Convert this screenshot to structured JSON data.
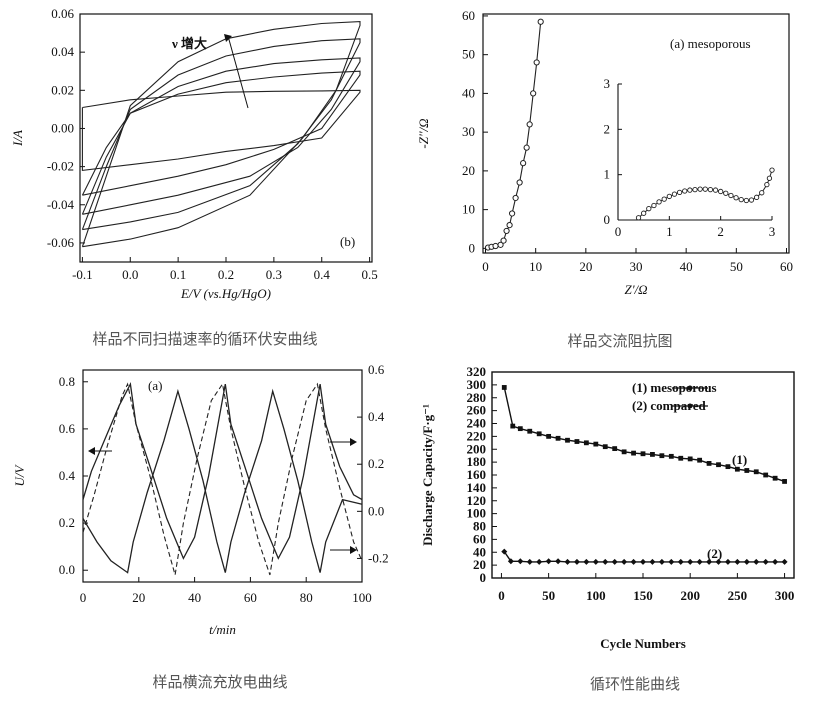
{
  "captions": {
    "p1": "样品不同扫描速率的循环伏安曲线",
    "p2": "样品交流阻抗图",
    "p3": "样品横流充放电曲线",
    "p4": "循环性能曲线"
  },
  "chart_data": [
    {
      "type": "line",
      "panel_label": "(b)",
      "xlabel": "E/V (vs.Hg/HgO)",
      "ylabel": "I/A",
      "xlim": [
        -0.1,
        0.5
      ],
      "ylim": [
        -0.07,
        0.06
      ],
      "x_ticks": [
        "-0.1",
        "0.0",
        "0.1",
        "0.2",
        "0.3",
        "0.4",
        "0.5"
      ],
      "y_ticks": [
        "0.06",
        "0.04",
        "0.02",
        "0.00",
        "-0.02",
        "-0.04",
        "-0.06"
      ],
      "annotation": "ν 增大",
      "series": [
        {
          "upper": [
            [
              -0.1,
              0.011
            ],
            [
              0.0,
              0.015
            ],
            [
              0.1,
              0.017
            ],
            [
              0.2,
              0.019
            ],
            [
              0.3,
              0.0195
            ],
            [
              0.4,
              0.0197
            ],
            [
              0.48,
              0.02
            ]
          ],
          "lower": [
            [
              0.48,
              0.019
            ],
            [
              0.4,
              -0.005
            ],
            [
              0.3,
              -0.009
            ],
            [
              0.2,
              -0.012
            ],
            [
              0.1,
              -0.016
            ],
            [
              0.0,
              -0.019
            ],
            [
              -0.1,
              -0.022
            ]
          ]
        },
        {
          "upper": [
            [
              -0.1,
              -0.035
            ],
            [
              -0.05,
              -0.01
            ],
            [
              0.0,
              0.008
            ],
            [
              0.1,
              0.018
            ],
            [
              0.2,
              0.024
            ],
            [
              0.3,
              0.027
            ],
            [
              0.4,
              0.029
            ],
            [
              0.48,
              0.03
            ]
          ],
          "lower": [
            [
              0.48,
              0.028
            ],
            [
              0.4,
              0.0
            ],
            [
              0.3,
              -0.011
            ],
            [
              0.2,
              -0.019
            ],
            [
              0.1,
              -0.025
            ],
            [
              0.0,
              -0.03
            ],
            [
              -0.1,
              -0.035
            ]
          ]
        },
        {
          "upper": [
            [
              -0.1,
              -0.045
            ],
            [
              -0.05,
              -0.015
            ],
            [
              0.0,
              0.008
            ],
            [
              0.1,
              0.022
            ],
            [
              0.2,
              0.03
            ],
            [
              0.3,
              0.034
            ],
            [
              0.4,
              0.036
            ],
            [
              0.48,
              0.037
            ]
          ],
          "lower": [
            [
              0.48,
              0.035
            ],
            [
              0.42,
              0.01
            ],
            [
              0.35,
              -0.01
            ],
            [
              0.25,
              -0.025
            ],
            [
              0.1,
              -0.035
            ],
            [
              0.0,
              -0.04
            ],
            [
              -0.1,
              -0.045
            ]
          ]
        },
        {
          "upper": [
            [
              -0.1,
              -0.053
            ],
            [
              -0.05,
              -0.02
            ],
            [
              0.0,
              0.01
            ],
            [
              0.1,
              0.028
            ],
            [
              0.2,
              0.038
            ],
            [
              0.3,
              0.043
            ],
            [
              0.4,
              0.046
            ],
            [
              0.48,
              0.047
            ]
          ],
          "lower": [
            [
              0.48,
              0.045
            ],
            [
              0.42,
              0.015
            ],
            [
              0.35,
              -0.008
            ],
            [
              0.25,
              -0.03
            ],
            [
              0.1,
              -0.044
            ],
            [
              0.0,
              -0.049
            ],
            [
              -0.1,
              -0.053
            ]
          ]
        },
        {
          "upper": [
            [
              -0.1,
              -0.062
            ],
            [
              -0.05,
              -0.025
            ],
            [
              0.0,
              0.012
            ],
            [
              0.1,
              0.035
            ],
            [
              0.2,
              0.047
            ],
            [
              0.3,
              0.052
            ],
            [
              0.4,
              0.055
            ],
            [
              0.48,
              0.056
            ]
          ],
          "lower": [
            [
              0.48,
              0.054
            ],
            [
              0.43,
              0.02
            ],
            [
              0.36,
              -0.005
            ],
            [
              0.25,
              -0.035
            ],
            [
              0.1,
              -0.052
            ],
            [
              0.0,
              -0.058
            ],
            [
              -0.1,
              -0.062
            ]
          ]
        }
      ]
    },
    {
      "type": "scatter",
      "panel_label": "(a) mesoporous",
      "xlabel": "Z'/Ω",
      "ylabel": "-Z''/Ω",
      "xlim": [
        0,
        60
      ],
      "ylim": [
        0,
        60
      ],
      "x_ticks": [
        "0",
        "10",
        "20",
        "30",
        "40",
        "50",
        "60"
      ],
      "y_ticks": [
        "0",
        "10",
        "20",
        "30",
        "40",
        "50",
        "60"
      ],
      "main": [
        [
          0.5,
          0.2
        ],
        [
          1.2,
          0.4
        ],
        [
          2,
          0.6
        ],
        [
          3,
          0.9
        ],
        [
          3.6,
          2
        ],
        [
          4.2,
          4.5
        ],
        [
          4.8,
          6
        ],
        [
          5.3,
          9
        ],
        [
          6,
          13
        ],
        [
          6.8,
          17
        ],
        [
          7.5,
          22
        ],
        [
          8.2,
          26
        ],
        [
          8.8,
          32
        ],
        [
          9.5,
          40
        ],
        [
          10.2,
          48
        ],
        [
          11,
          58.5
        ]
      ],
      "inset": {
        "xlim": [
          0,
          3
        ],
        "ylim": [
          0,
          3
        ],
        "x_ticks": [
          "0",
          "1",
          "2",
          "3"
        ],
        "y_ticks": [
          "0",
          "1",
          "2",
          "3"
        ],
        "points": [
          [
            0.4,
            0.05
          ],
          [
            0.5,
            0.15
          ],
          [
            0.6,
            0.25
          ],
          [
            0.7,
            0.32
          ],
          [
            0.8,
            0.4
          ],
          [
            0.9,
            0.46
          ],
          [
            1.0,
            0.52
          ],
          [
            1.1,
            0.57
          ],
          [
            1.2,
            0.61
          ],
          [
            1.3,
            0.64
          ],
          [
            1.4,
            0.66
          ],
          [
            1.5,
            0.67
          ],
          [
            1.6,
            0.68
          ],
          [
            1.7,
            0.68
          ],
          [
            1.8,
            0.67
          ],
          [
            1.9,
            0.66
          ],
          [
            2.0,
            0.63
          ],
          [
            2.1,
            0.59
          ],
          [
            2.2,
            0.54
          ],
          [
            2.3,
            0.49
          ],
          [
            2.4,
            0.45
          ],
          [
            2.5,
            0.43
          ],
          [
            2.6,
            0.44
          ],
          [
            2.7,
            0.5
          ],
          [
            2.8,
            0.6
          ],
          [
            2.9,
            0.78
          ],
          [
            2.95,
            0.92
          ],
          [
            3.0,
            1.1
          ]
        ]
      }
    },
    {
      "type": "line",
      "panel_label": "(a)",
      "xlabel": "t/min",
      "ylabel": "U/V",
      "xlim": [
        0,
        100
      ],
      "ylim": [
        -0.05,
        0.85
      ],
      "ylim_right": [
        -0.3,
        0.6
      ],
      "x_ticks": [
        "0",
        "20",
        "40",
        "60",
        "80",
        "100"
      ],
      "y_ticks": [
        "0.0",
        "0.2",
        "0.4",
        "0.6",
        "0.8"
      ],
      "y_ticks_right": [
        "-0.2",
        "0.0",
        "0.2",
        "0.4",
        "0.6"
      ],
      "solid": [
        [
          0,
          0.3
        ],
        [
          3,
          0.42
        ],
        [
          8,
          0.56
        ],
        [
          13,
          0.7
        ],
        [
          17,
          0.79
        ],
        [
          19,
          0.62
        ],
        [
          24,
          0.44
        ],
        [
          30,
          0.22
        ],
        [
          36,
          0.05
        ],
        [
          40,
          0.14
        ],
        [
          45,
          0.4
        ],
        [
          51,
          0.79
        ],
        [
          53,
          0.62
        ],
        [
          58,
          0.44
        ],
        [
          64,
          0.22
        ],
        [
          70,
          0.05
        ],
        [
          74,
          0.14
        ],
        [
          79,
          0.4
        ],
        [
          85,
          0.79
        ],
        [
          87,
          0.62
        ],
        [
          92,
          0.44
        ],
        [
          97,
          0.32
        ],
        [
          100,
          0.3
        ]
      ],
      "solid_b": [
        [
          0,
          0.22
        ],
        [
          5,
          0.12
        ],
        [
          10,
          0.04
        ],
        [
          16,
          -0.01
        ],
        [
          18,
          0.12
        ],
        [
          23,
          0.33
        ],
        [
          29,
          0.55
        ],
        [
          34,
          0.76
        ],
        [
          38,
          0.6
        ],
        [
          43,
          0.38
        ],
        [
          48,
          0.12
        ],
        [
          51,
          -0.01
        ],
        [
          53,
          0.12
        ],
        [
          58,
          0.33
        ],
        [
          64,
          0.55
        ],
        [
          68,
          0.76
        ],
        [
          72,
          0.6
        ],
        [
          77,
          0.38
        ],
        [
          82,
          0.12
        ],
        [
          85,
          -0.01
        ],
        [
          87,
          0.12
        ],
        [
          93,
          0.3
        ],
        [
          100,
          0.28
        ]
      ],
      "dashed": [
        [
          0,
          0.16
        ],
        [
          4,
          0.32
        ],
        [
          9,
          0.54
        ],
        [
          14,
          0.74
        ],
        [
          16,
          0.79
        ],
        [
          19,
          0.62
        ],
        [
          24,
          0.4
        ],
        [
          29,
          0.15
        ],
        [
          33,
          -0.02
        ],
        [
          36,
          0.2
        ],
        [
          41,
          0.48
        ],
        [
          46,
          0.72
        ],
        [
          50,
          0.79
        ],
        [
          53,
          0.6
        ],
        [
          58,
          0.35
        ],
        [
          63,
          0.12
        ],
        [
          67,
          -0.02
        ],
        [
          70,
          0.2
        ],
        [
          75,
          0.48
        ],
        [
          80,
          0.72
        ],
        [
          84,
          0.79
        ],
        [
          87,
          0.6
        ],
        [
          92,
          0.35
        ],
        [
          97,
          0.12
        ],
        [
          100,
          0.04
        ]
      ]
    },
    {
      "type": "line",
      "xlabel": "Cycle Numbers",
      "ylabel": "Discharge Capacity/F·g⁻¹",
      "xlim": [
        -10,
        310
      ],
      "ylim": [
        0,
        320
      ],
      "x_ticks": [
        "0",
        "50",
        "100",
        "150",
        "200",
        "250",
        "300"
      ],
      "y_ticks": [
        "0",
        "20",
        "40",
        "60",
        "80",
        "100",
        "120",
        "140",
        "160",
        "180",
        "200",
        "220",
        "240",
        "260",
        "280",
        "300",
        "320"
      ],
      "legend": [
        "(1) mesoporous",
        "(2) compared"
      ],
      "label_1": "(1)",
      "label_2": "(2)",
      "series": [
        {
          "name": "mesoporous",
          "x": [
            3,
            12,
            20,
            30,
            40,
            50,
            60,
            70,
            80,
            90,
            100,
            110,
            120,
            130,
            140,
            150,
            160,
            170,
            180,
            190,
            200,
            210,
            220,
            230,
            240,
            250,
            260,
            270,
            280,
            290,
            300
          ],
          "values": [
            296,
            236,
            232,
            228,
            224,
            220,
            217,
            214,
            212,
            210,
            208,
            204,
            201,
            196,
            194,
            193,
            192,
            190,
            189,
            186,
            185,
            183,
            178,
            176,
            173,
            169,
            167,
            165,
            160,
            155,
            150
          ]
        },
        {
          "name": "compared",
          "x": [
            3,
            10,
            20,
            30,
            40,
            50,
            60,
            70,
            80,
            90,
            100,
            110,
            120,
            130,
            140,
            150,
            160,
            170,
            180,
            190,
            200,
            210,
            220,
            230,
            240,
            250,
            260,
            270,
            280,
            290,
            300
          ],
          "values": [
            41,
            26,
            26,
            25,
            25,
            26,
            26,
            25,
            25,
            25,
            25,
            25,
            25,
            25,
            25,
            25,
            25,
            25,
            25,
            25,
            25,
            25,
            25,
            25,
            25,
            25,
            25,
            25,
            25,
            25,
            25
          ]
        }
      ]
    }
  ]
}
